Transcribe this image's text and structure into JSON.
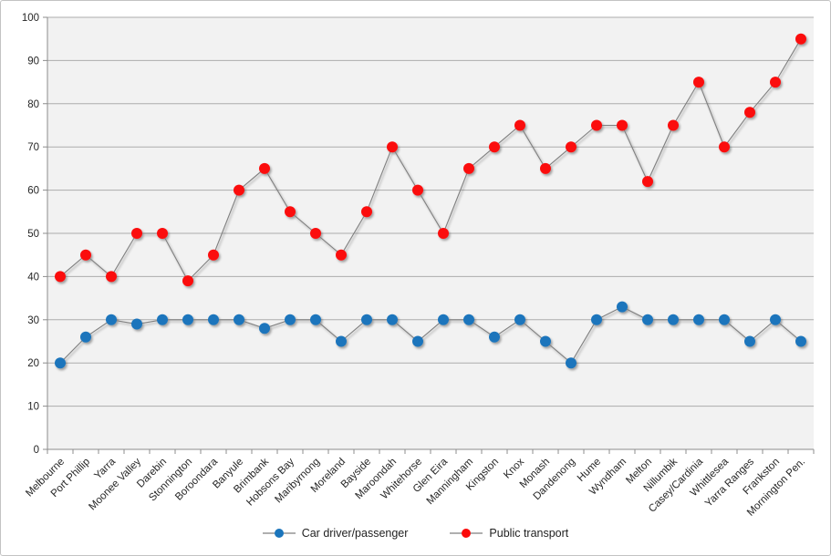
{
  "chart_data": {
    "type": "line",
    "title": "",
    "xlabel": "",
    "ylabel": "",
    "ylim": [
      0,
      100
    ],
    "ytick_step": 10,
    "grid": true,
    "legend_position": "bottom",
    "categories": [
      "Melbourne",
      "Port Phillip",
      "Yarra",
      "Moonee Valley",
      "Darebin",
      "Stonnington",
      "Boroondara",
      "Banyule",
      "Brimbank",
      "Hobsons Bay",
      "Maribyrnong",
      "Moreland",
      "Bayside",
      "Maroondah",
      "Whitehorse",
      "Glen Eira",
      "Manningham",
      "Kingston",
      "Knox",
      "Monash",
      "Dandenong",
      "Hume",
      "Wyndham",
      "Melton",
      "Nillumbik",
      "Casey/Cardinia",
      "Whittlesea",
      "Yarra Ranges",
      "Frankston",
      "Mornington Pen."
    ],
    "series": [
      {
        "name": "Car driver/passenger",
        "color": "#1b75bc",
        "values": [
          20,
          26,
          30,
          29,
          30,
          30,
          30,
          30,
          28,
          30,
          30,
          25,
          30,
          30,
          25,
          30,
          30,
          26,
          30,
          25,
          20,
          30,
          33,
          30,
          30,
          30,
          30,
          25,
          30,
          25
        ]
      },
      {
        "name": "Public transport",
        "color": "#fb0a0a",
        "values": [
          40,
          45,
          40,
          50,
          50,
          39,
          45,
          60,
          65,
          55,
          50,
          45,
          55,
          70,
          60,
          50,
          65,
          70,
          75,
          65,
          70,
          75,
          75,
          62,
          75,
          85,
          70,
          78,
          85,
          95
        ]
      }
    ],
    "colors": {
      "plot_bg": "#f2f2f2",
      "grid_line": "#acacac",
      "axis_line": "#8c8c8c",
      "series_line": "#7f7f7f",
      "tick_label": "#262626"
    }
  }
}
